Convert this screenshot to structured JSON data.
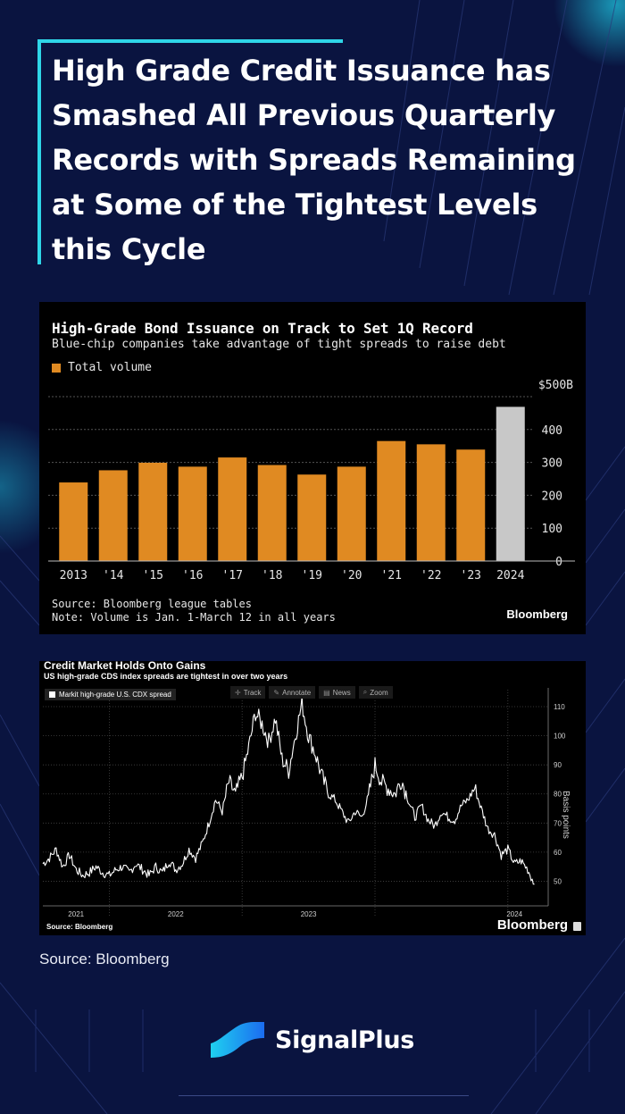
{
  "title": "High Grade Credit Issuance has Smashed All Previous Quarterly Records with Spreads Remaining at Some of the Tightest Levels this Cycle",
  "colors": {
    "background": "#0a1440",
    "accent": "#2fd6e8",
    "bar": "#e08a22",
    "bar_highlight": "#c8c8c8"
  },
  "chart_data": [
    {
      "type": "bar",
      "title": "High-Grade Bond Issuance on Track to Set 1Q Record",
      "subtitle": "Blue-chip companies take advantage of tight spreads to raise debt",
      "legend": "Total volume",
      "unit_label": "$500B",
      "categories": [
        "2013",
        "'14",
        "'15",
        "'16",
        "'17",
        "'18",
        "'19",
        "'20",
        "'21",
        "'22",
        "'23",
        "2024"
      ],
      "values": [
        239,
        276,
        299,
        287,
        315,
        292,
        263,
        287,
        365,
        355,
        339,
        469
      ],
      "highlight_index": 11,
      "yticks": [
        "400",
        "300",
        "200",
        "100",
        "0"
      ],
      "ylim": [
        0,
        500
      ],
      "source": "Source: Bloomberg league tables",
      "note": "Note: Volume is Jan. 1-March 12 in all years",
      "brand": "Bloomberg"
    },
    {
      "type": "line",
      "title": "Credit Market Holds Onto Gains",
      "subtitle": "US high-grade CDS index spreads are tightest in over two years",
      "series_name": "Markit high-grade U.S. CDX spread",
      "ylabel": "Basis points",
      "ylim": [
        44,
        114
      ],
      "yticks": [
        "110",
        "100",
        "90",
        "80",
        "70",
        "60",
        "50"
      ],
      "xticks": [
        "2021",
        "2022",
        "2023",
        "2024"
      ],
      "x": [
        2020.5,
        2020.55,
        2020.6,
        2020.65,
        2020.7,
        2020.75,
        2020.8,
        2020.85,
        2020.9,
        2020.95,
        2021.0,
        2021.05,
        2021.1,
        2021.15,
        2021.2,
        2021.25,
        2021.3,
        2021.35,
        2021.4,
        2021.45,
        2021.5,
        2021.55,
        2021.6,
        2021.65,
        2021.7,
        2021.75,
        2021.8,
        2021.85,
        2021.9,
        2021.95,
        2022.0,
        2022.05,
        2022.1,
        2022.15,
        2022.2,
        2022.25,
        2022.3,
        2022.35,
        2022.4,
        2022.45,
        2022.5,
        2022.55,
        2022.6,
        2022.65,
        2022.7,
        2022.75,
        2022.8,
        2022.85,
        2022.9,
        2022.95,
        2023.0,
        2023.05,
        2023.1,
        2023.15,
        2023.2,
        2023.25,
        2023.3,
        2023.35,
        2023.4,
        2023.45,
        2023.5,
        2023.55,
        2023.6,
        2023.65,
        2023.7,
        2023.75,
        2023.8,
        2023.85,
        2023.9,
        2023.95,
        2024.0,
        2024.05,
        2024.1,
        2024.15,
        2024.2
      ],
      "values": [
        56,
        58,
        61,
        55,
        59,
        54,
        52,
        53,
        55,
        53,
        52,
        54,
        55,
        53,
        56,
        54,
        52,
        55,
        53,
        57,
        54,
        56,
        61,
        58,
        63,
        70,
        78,
        74,
        84,
        80,
        86,
        96,
        108,
        104,
        98,
        106,
        92,
        88,
        100,
        111,
        100,
        94,
        86,
        80,
        78,
        74,
        70,
        74,
        72,
        79,
        90,
        84,
        82,
        80,
        85,
        78,
        72,
        76,
        71,
        69,
        74,
        72,
        71,
        76,
        78,
        82,
        75,
        68,
        66,
        59,
        61,
        56,
        57,
        54,
        49
      ],
      "source": "Source: Bloomberg",
      "brand": "Bloomberg",
      "toolbar": [
        {
          "label": "Track",
          "icon": "crosshair-icon"
        },
        {
          "label": "Annotate",
          "icon": "pencil-icon"
        },
        {
          "label": "News",
          "icon": "news-icon"
        },
        {
          "label": "Zoom",
          "icon": "magnifier-icon"
        }
      ]
    }
  ],
  "footer": {
    "source": "Source: Bloomberg",
    "brand": "SignalPlus"
  }
}
